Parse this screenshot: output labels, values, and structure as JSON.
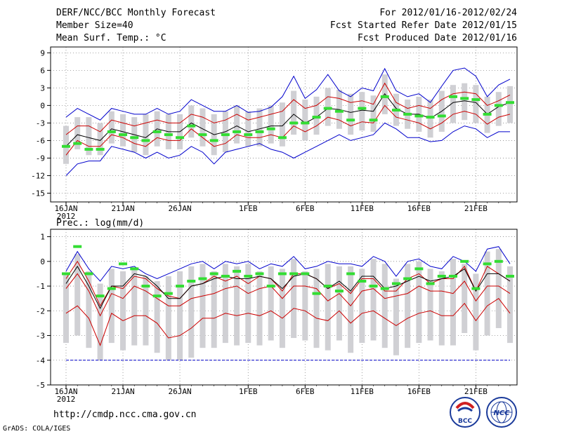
{
  "header": {
    "title": "DERF/NCC/BCC Monthly Forecast",
    "member": "Member Size=40",
    "variable": "Mean Surf. Temp.: °C",
    "period": "For 2012/01/16-2012/02/24",
    "started": "Fcst Started Refer Date 2012/01/15",
    "produced": "Fcst Produced Date 2012/01/16"
  },
  "footer": {
    "url": "http://cmdp.ncc.cma.gov.cn",
    "grads": "GrADS: COLA/IGES",
    "logo_bcc": "BCC",
    "logo_ncc": "NCC"
  },
  "colors": {
    "blue": "#0000cc",
    "red": "#cc0000",
    "black": "#000000",
    "green": "#33dd33",
    "box": "#d0d0d4",
    "grid": "#888888"
  },
  "chart_data": [
    {
      "type": "line",
      "name": "temperature",
      "title": "Mean Surf. Temp.: °C",
      "x_tick_labels": [
        "16JAN",
        "21JAN",
        "26JAN",
        "1FEB",
        "6FEB",
        "11FEB",
        "16FEB",
        "21FEB"
      ],
      "x_tick_days": [
        1,
        6,
        11,
        17,
        22,
        27,
        32,
        37
      ],
      "year_label": "2012",
      "ylim": [
        -16.5,
        10
      ],
      "yticks": [
        -15,
        -12,
        -9,
        -6,
        -3,
        0,
        3,
        6,
        9
      ],
      "days": [
        1,
        2,
        3,
        4,
        5,
        6,
        7,
        8,
        9,
        10,
        11,
        12,
        13,
        14,
        15,
        16,
        17,
        18,
        19,
        20,
        21,
        22,
        23,
        24,
        25,
        26,
        27,
        28,
        29,
        30,
        31,
        32,
        33,
        34,
        35,
        36,
        37,
        38,
        39,
        40
      ],
      "series": [
        {
          "name": "max",
          "color": "blue",
          "values": [
            -2,
            -0.5,
            -1.5,
            -2.5,
            -0.5,
            -1,
            -1.5,
            -1.5,
            -0.5,
            -1.5,
            -1,
            1,
            0,
            -1,
            -1,
            0,
            -1.2,
            -1,
            -0.3,
            1.5,
            5,
            1.2,
            2.7,
            5.3,
            2.5,
            1.5,
            3,
            2.5,
            6.3,
            2.5,
            1.5,
            2,
            0.5,
            3.3,
            6,
            6.4,
            5,
            1.5,
            3.5,
            4.5
          ]
        },
        {
          "name": "p75",
          "color": "red",
          "values": [
            -5,
            -3.5,
            -3.5,
            -4.5,
            -2.5,
            -3,
            -3.5,
            -3,
            -2.5,
            -3,
            -3,
            -1.5,
            -2,
            -3,
            -2.5,
            -1.5,
            -2.5,
            -2,
            -1.5,
            -1,
            1,
            -0.5,
            0,
            1.5,
            1.2,
            0.5,
            0.8,
            0.2,
            3.8,
            0.5,
            -0.5,
            0,
            -0.5,
            1,
            2,
            2.3,
            2,
            0,
            0.8,
            1.8
          ]
        },
        {
          "name": "mean",
          "color": "black",
          "values": [
            -7,
            -5,
            -5.5,
            -6,
            -4,
            -4.5,
            -5,
            -5.5,
            -4,
            -4.5,
            -4.5,
            -3,
            -4,
            -5,
            -4.5,
            -3.5,
            -4.5,
            -4,
            -3.5,
            -3.5,
            -1.5,
            -3,
            -2,
            -0.5,
            -0.7,
            -1.2,
            -0.8,
            -1,
            2,
            -0.5,
            -1.5,
            -1.5,
            -2.2,
            -1,
            0.5,
            0.8,
            0.5,
            -1.5,
            -0.2,
            0.5
          ]
        },
        {
          "name": "p25",
          "color": "red",
          "values": [
            -8.5,
            -6,
            -7,
            -7,
            -5,
            -5.5,
            -6.5,
            -7,
            -5.5,
            -6,
            -6,
            -4,
            -5.5,
            -7,
            -6.5,
            -5,
            -5.5,
            -5.5,
            -5,
            -5.5,
            -3.5,
            -4.5,
            -3.5,
            -2,
            -2.5,
            -3.5,
            -2.8,
            -3,
            0,
            -2,
            -2.5,
            -3,
            -4,
            -3,
            -1.5,
            -1,
            -1.5,
            -3.2,
            -2,
            -1.5
          ]
        },
        {
          "name": "min",
          "color": "blue",
          "values": [
            -12,
            -10,
            -9.5,
            -9.5,
            -7,
            -7.5,
            -8,
            -9,
            -8,
            -9,
            -8.5,
            -7,
            -8,
            -10,
            -8,
            -7.5,
            -7,
            -6.5,
            -7.5,
            -8,
            -9,
            -8,
            -7,
            -6,
            -5,
            -6,
            -5.5,
            -5,
            -3,
            -4,
            -5.5,
            -5.5,
            -6.2,
            -6,
            -4.5,
            -3.5,
            -4,
            -5.5,
            -4.5,
            -4.5
          ]
        },
        {
          "name": "obs_ref",
          "color": "green",
          "values": [
            -7,
            -6.5,
            -7.5,
            -7.5,
            -4.5,
            -5,
            -5.5,
            -6,
            -4.5,
            -5,
            -5.5,
            -3.5,
            -5,
            -6,
            -5,
            -4.5,
            -5,
            -4.5,
            -4,
            -5.5,
            -3,
            -3,
            -2,
            -0.5,
            -1,
            -2.5,
            -0.5,
            -2.5,
            1.5,
            -0.8,
            -1.5,
            -1.8,
            -2,
            -1.8,
            1.5,
            1.2,
            1,
            -1.5,
            0,
            0.5
          ]
        }
      ]
    },
    {
      "type": "line",
      "name": "precipitation",
      "title": "Prec.: log(mm/d)",
      "x_tick_labels": [
        "16JAN",
        "21JAN",
        "26JAN",
        "1FEB",
        "6FEB",
        "11FEB",
        "16FEB",
        "21FEB"
      ],
      "x_tick_days": [
        1,
        6,
        11,
        17,
        22,
        27,
        32,
        37
      ],
      "year_label": "2012",
      "ylim": [
        -5,
        1.3
      ],
      "yticks": [
        -5,
        -4,
        -3,
        -2,
        -1,
        0,
        1
      ],
      "days": [
        1,
        2,
        3,
        4,
        5,
        6,
        7,
        8,
        9,
        10,
        11,
        12,
        13,
        14,
        15,
        16,
        17,
        18,
        19,
        20,
        21,
        22,
        23,
        24,
        25,
        26,
        27,
        28,
        29,
        30,
        31,
        32,
        33,
        34,
        35,
        36,
        37,
        38,
        39,
        40
      ],
      "series": [
        {
          "name": "max",
          "color": "blue",
          "values": [
            -0.4,
            0.4,
            -0.3,
            -0.8,
            -0.2,
            -0.3,
            -0.2,
            -0.5,
            -0.7,
            -0.5,
            -0.3,
            -0.1,
            0,
            -0.3,
            0,
            -0.1,
            0,
            -0.3,
            -0.1,
            -0.2,
            0.2,
            -0.3,
            -0.2,
            0,
            -0.1,
            -0.1,
            -0.2,
            0.2,
            0,
            -0.6,
            0,
            0.1,
            -0.2,
            -0.3,
            0.2,
            0,
            -0.4,
            0.5,
            0.6,
            -0.1
          ]
        },
        {
          "name": "p75",
          "color": "red",
          "values": [
            -0.7,
            0,
            -0.8,
            -1.8,
            -1,
            -1.1,
            -0.6,
            -0.7,
            -1.1,
            -1.4,
            -1.5,
            -1,
            -0.9,
            -0.6,
            -0.8,
            -0.6,
            -0.9,
            -0.6,
            -0.7,
            -1.2,
            -0.5,
            -0.5,
            -0.7,
            -1.1,
            -0.9,
            -1.3,
            -0.7,
            -0.7,
            -1.2,
            -1.2,
            -0.7,
            -0.5,
            -0.9,
            -0.7,
            -0.7,
            -0.2,
            -1.2,
            -0.2,
            -0.5,
            -0.8
          ]
        },
        {
          "name": "mean",
          "color": "black",
          "values": [
            -0.9,
            -0.2,
            -1,
            -1.9,
            -1,
            -1,
            -0.5,
            -0.6,
            -1,
            -1.5,
            -1.5,
            -1,
            -0.9,
            -0.7,
            -0.6,
            -0.7,
            -0.7,
            -0.6,
            -0.7,
            -1.1,
            -0.6,
            -0.5,
            -0.7,
            -1.1,
            -0.8,
            -1.2,
            -0.6,
            -0.6,
            -1.1,
            -1,
            -0.8,
            -0.6,
            -0.8,
            -0.7,
            -0.6,
            -0.3,
            -1.2,
            -0.5,
            -0.5,
            -0.8
          ]
        },
        {
          "name": "p25",
          "color": "red",
          "values": [
            -1.1,
            -0.5,
            -1.2,
            -2.2,
            -1.3,
            -1.5,
            -1,
            -1.2,
            -1.5,
            -1.8,
            -1.8,
            -1.5,
            -1.4,
            -1.3,
            -1.1,
            -1,
            -1.3,
            -1.1,
            -1,
            -1.5,
            -1,
            -1,
            -1.1,
            -1.6,
            -1.3,
            -1.8,
            -1.2,
            -1.1,
            -1.5,
            -1.4,
            -1.3,
            -1,
            -1.2,
            -1.2,
            -1.3,
            -0.8,
            -1.6,
            -1,
            -1,
            -1.3
          ]
        },
        {
          "name": "min",
          "color": "red",
          "values": [
            -2.1,
            -1.8,
            -2.3,
            -3.4,
            -2.1,
            -2.4,
            -2.2,
            -2.2,
            -2.5,
            -3.1,
            -3,
            -2.7,
            -2.3,
            -2.3,
            -2.1,
            -2.2,
            -2.1,
            -2.2,
            -2,
            -2.3,
            -1.9,
            -2,
            -2.3,
            -2.4,
            -2,
            -2.5,
            -2.1,
            -2,
            -2.3,
            -2.6,
            -2.3,
            -2.1,
            -2,
            -2.2,
            -2.2,
            -1.7,
            -2.4,
            -1.8,
            -1.5,
            -2.1
          ]
        },
        {
          "name": "obs_ref",
          "color": "green",
          "values": [
            -0.5,
            0.6,
            -0.5,
            -1.4,
            -1.1,
            -0.1,
            -0.3,
            -1,
            -1.4,
            -1.3,
            -1,
            -0.8,
            -0.7,
            -0.5,
            -0.6,
            -0.4,
            -0.6,
            -0.5,
            -1,
            -0.5,
            -0.5,
            -0.5,
            -1.3,
            -1,
            -1.2,
            -0.5,
            -0.8,
            -1,
            -1.1,
            -0.9,
            -0.7,
            -0.3,
            -0.9,
            -0.6,
            -0.6,
            0,
            -1.1,
            -0.1,
            0,
            -0.6
          ]
        }
      ],
      "reference_line": {
        "value": -4,
        "color": "blue",
        "style": "dashed"
      }
    }
  ]
}
